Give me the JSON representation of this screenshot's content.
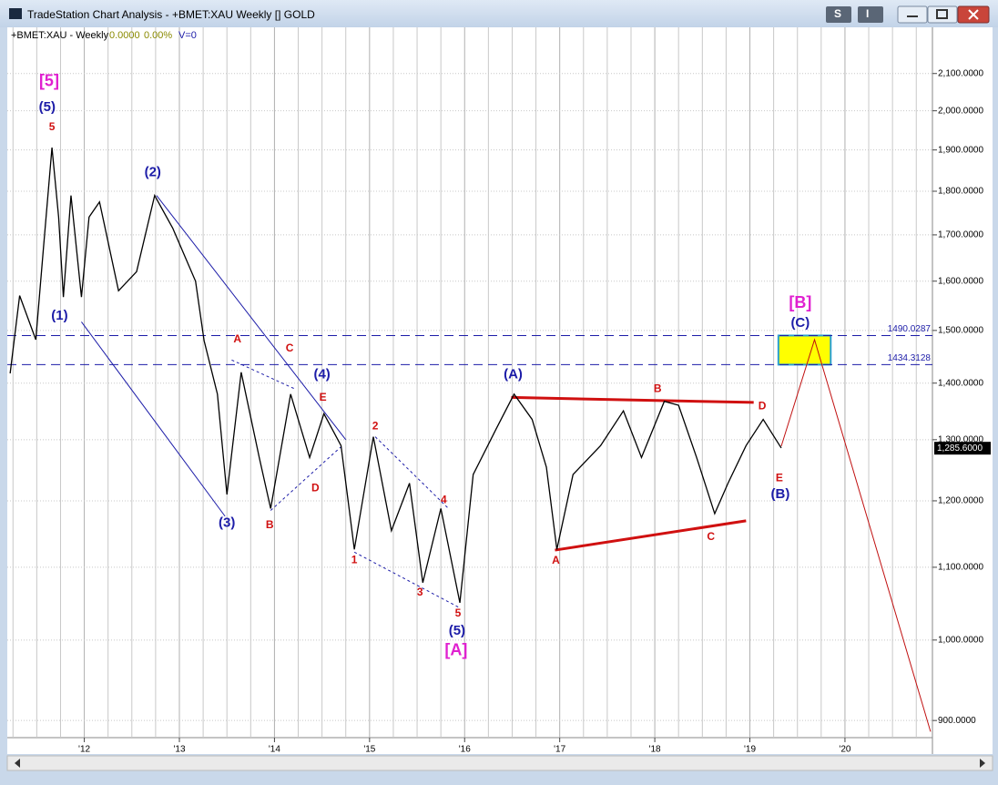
{
  "window": {
    "title": "TradeStation Chart Analysis - +BMET:XAU Weekly [] GOLD",
    "buttons": [
      "S",
      "I"
    ]
  },
  "chart_data": {
    "type": "line",
    "symbol": "+BMET:XAU - Weekly",
    "change": "0.0000",
    "change_pct": "0.00%",
    "volume": "V=0",
    "log_scale": true,
    "grid": true,
    "color": "#000000",
    "x": [
      2011.22,
      2011.32,
      2011.49,
      2011.57,
      2011.66,
      2011.73,
      2011.78,
      2011.86,
      2011.97,
      2012.05,
      2012.16,
      2012.36,
      2012.55,
      2012.74,
      2012.93,
      2013.17,
      2013.26,
      2013.4,
      2013.5,
      2013.65,
      2013.84,
      2013.96,
      2014.17,
      2014.37,
      2014.52,
      2014.7,
      2014.84,
      2015.04,
      2015.23,
      2015.42,
      2015.56,
      2015.75,
      2015.95,
      2016.09,
      2016.33,
      2016.52,
      2016.71,
      2016.86,
      2016.97,
      2017.14,
      2017.43,
      2017.67,
      2017.86,
      2018.1,
      2018.25,
      2018.44,
      2018.63,
      2018.77,
      2018.96,
      2019.14,
      2019.33
    ],
    "values": [
      1418,
      1570,
      1482,
      1670,
      1906,
      1740,
      1567,
      1790,
      1567,
      1740,
      1775,
      1580,
      1620,
      1790,
      1715,
      1600,
      1480,
      1380,
      1210,
      1420,
      1270,
      1188,
      1380,
      1270,
      1345,
      1290,
      1126,
      1305,
      1154,
      1228,
      1078,
      1188,
      1050,
      1242,
      1318,
      1380,
      1335,
      1254,
      1126,
      1242,
      1290,
      1350,
      1270,
      1367,
      1360,
      1270,
      1180,
      1228,
      1290,
      1335,
      1286
    ],
    "xlim": [
      2011.19,
      2020.92
    ],
    "ylim": [
      880,
      2231
    ],
    "xticks": [
      {
        "value": 2012,
        "label": "'12"
      },
      {
        "value": 2013,
        "label": "'13"
      },
      {
        "value": 2014,
        "label": "'14"
      },
      {
        "value": 2015,
        "label": "'15"
      },
      {
        "value": 2016,
        "label": "'16"
      },
      {
        "value": 2017,
        "label": "'17"
      },
      {
        "value": 2018,
        "label": "'18"
      },
      {
        "value": 2019,
        "label": "'19"
      },
      {
        "value": 2020,
        "label": "'20"
      }
    ],
    "x_minor_ticks": [
      2011.25,
      2011.5,
      2011.75,
      2012.25,
      2012.5,
      2012.75,
      2013.25,
      2013.5,
      2013.75,
      2014.25,
      2014.5,
      2014.75,
      2015.25,
      2015.5,
      2015.75,
      2016.25,
      2016.5,
      2016.75,
      2017.25,
      2017.5,
      2017.75,
      2018.25,
      2018.5,
      2018.75,
      2019.25,
      2019.5,
      2019.75,
      2020.25,
      2020.5,
      2020.75
    ],
    "yticks": [
      {
        "value": 900,
        "label": "900.0000"
      },
      {
        "value": 1000,
        "label": "1,000.0000"
      },
      {
        "value": 1100,
        "label": "1,100.0000"
      },
      {
        "value": 1200,
        "label": "1,200.0000"
      },
      {
        "value": 1300,
        "label": "1,300.0000"
      },
      {
        "value": 1400,
        "label": "1,400.0000"
      },
      {
        "value": 1500,
        "label": "1,500.0000"
      },
      {
        "value": 1600,
        "label": "1,600.0000"
      },
      {
        "value": 1700,
        "label": "1,700.0000"
      },
      {
        "value": 1800,
        "label": "1,800.0000"
      },
      {
        "value": 1900,
        "label": "1,900.0000"
      },
      {
        "value": 2000,
        "label": "2,000.0000"
      },
      {
        "value": 2100,
        "label": "2,100.0000"
      }
    ],
    "levels": [
      {
        "value": 1490.0287,
        "color": "#1c1ca8"
      },
      {
        "value": 1434.3128,
        "color": "#1c1ca8"
      }
    ],
    "last_price": {
      "value": 1285.6,
      "label": "1,285.6000"
    },
    "target_zone": {
      "x": [
        2019.3,
        2019.85
      ],
      "color": "#ffff00"
    },
    "annotations": [
      {
        "text": "[5]",
        "x": 2011.63,
        "y": 2078,
        "color": "#e020d0"
      },
      {
        "text": "(5)",
        "x": 2011.61,
        "y": 2009,
        "color": "#1c1ca8"
      },
      {
        "text": "5",
        "x": 2011.66,
        "y": 1957,
        "color": "#d01010"
      },
      {
        "text": "(2)",
        "x": 2012.72,
        "y": 1844,
        "color": "#1c1ca8"
      },
      {
        "text": "(1)",
        "x": 2011.74,
        "y": 1529,
        "color": "#1c1ca8"
      },
      {
        "text": "(3)",
        "x": 2013.5,
        "y": 1165,
        "color": "#1c1ca8"
      },
      {
        "text": "A",
        "x": 2013.61,
        "y": 1482,
        "color": "#d01010"
      },
      {
        "text": "C",
        "x": 2014.16,
        "y": 1465,
        "color": "#d01010"
      },
      {
        "text": "(4)",
        "x": 2014.5,
        "y": 1415,
        "color": "#1c1ca8"
      },
      {
        "text": "E",
        "x": 2014.51,
        "y": 1373,
        "color": "#d01010"
      },
      {
        "text": "D",
        "x": 2014.43,
        "y": 1220,
        "color": "#d01010"
      },
      {
        "text": "B",
        "x": 2013.95,
        "y": 1162,
        "color": "#d01010"
      },
      {
        "text": "2",
        "x": 2015.06,
        "y": 1323,
        "color": "#d01010"
      },
      {
        "text": "1",
        "x": 2014.84,
        "y": 1110,
        "color": "#d01010"
      },
      {
        "text": "3",
        "x": 2015.53,
        "y": 1064,
        "color": "#d01010"
      },
      {
        "text": "4",
        "x": 2015.78,
        "y": 1201,
        "color": "#d01010"
      },
      {
        "text": "5",
        "x": 2015.93,
        "y": 1035,
        "color": "#d01010"
      },
      {
        "text": "(5)",
        "x": 2015.92,
        "y": 1012,
        "color": "#1c1ca8"
      },
      {
        "text": "[A]",
        "x": 2015.91,
        "y": 986,
        "color": "#e020d0"
      },
      {
        "text": "(A)",
        "x": 2016.51,
        "y": 1415,
        "color": "#1c1ca8"
      },
      {
        "text": "A",
        "x": 2016.96,
        "y": 1109,
        "color": "#d01010"
      },
      {
        "text": "B",
        "x": 2018.03,
        "y": 1389,
        "color": "#d01010"
      },
      {
        "text": "C",
        "x": 2018.59,
        "y": 1144,
        "color": "#d01010"
      },
      {
        "text": "D",
        "x": 2019.13,
        "y": 1358,
        "color": "#d01010"
      },
      {
        "text": "E",
        "x": 2019.31,
        "y": 1236,
        "color": "#d01010"
      },
      {
        "text": "(B)",
        "x": 2019.32,
        "y": 1210,
        "color": "#1c1ca8"
      },
      {
        "text": "[B]",
        "x": 2019.53,
        "y": 1554,
        "color": "#e020d0"
      },
      {
        "text": "(C)",
        "x": 2019.53,
        "y": 1514,
        "color": "#1c1ca8"
      }
    ],
    "trendlines": [
      {
        "x": [
          2012.76,
          2014.75
        ],
        "y": [
          1790,
          1300
        ],
        "color": "#1c1ca8",
        "width": 1,
        "dashed": false
      },
      {
        "x": [
          2011.97,
          2013.48
        ],
        "y": [
          1517,
          1176
        ],
        "color": "#1c1ca8",
        "width": 1,
        "dashed": false
      },
      {
        "x": [
          2013.55,
          2014.22
        ],
        "y": [
          1443,
          1389
        ],
        "color": "#1c1ca8",
        "width": 1,
        "dashed": true
      },
      {
        "x": [
          2013.96,
          2014.7
        ],
        "y": [
          1185,
          1288
        ],
        "color": "#1c1ca8",
        "width": 1,
        "dashed": true
      },
      {
        "x": [
          2015.06,
          2015.83
        ],
        "y": [
          1305,
          1188
        ],
        "color": "#1c1ca8",
        "width": 1,
        "dashed": true
      },
      {
        "x": [
          2014.84,
          2015.95
        ],
        "y": [
          1122,
          1043
        ],
        "color": "#1c1ca8",
        "width": 1,
        "dashed": true
      },
      {
        "x": [
          2016.49,
          2019.04
        ],
        "y": [
          1374,
          1365
        ],
        "color": "#d01010",
        "width": 3,
        "dashed": false
      },
      {
        "x": [
          2016.95,
          2018.96
        ],
        "y": [
          1125,
          1169
        ],
        "color": "#d01010",
        "width": 3,
        "dashed": false
      },
      {
        "x": [
          2019.33,
          2019.68,
          2020.9
        ],
        "y": [
          1289,
          1482,
          887
        ],
        "color": "#c01010",
        "width": 1,
        "dashed": false
      }
    ]
  }
}
